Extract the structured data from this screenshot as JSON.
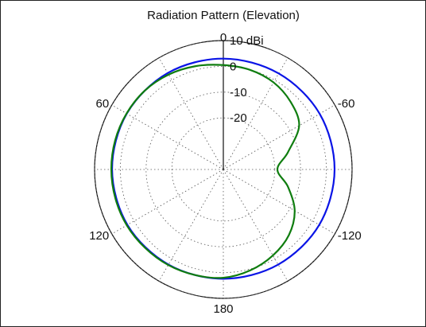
{
  "chart_data": {
    "type": "line",
    "subtype": "polar",
    "title": "Radiation Pattern (Elevation)",
    "radial_unit": "dBi",
    "radial_range": [
      -40,
      10
    ],
    "radial_ticks": [
      {
        "value": 10,
        "label": "10 dBi"
      },
      {
        "value": 0,
        "label": "0"
      },
      {
        "value": -10,
        "label": "-10"
      },
      {
        "value": -20,
        "label": "-20"
      }
    ],
    "angle_labels": [
      {
        "angle": 0,
        "label": "0"
      },
      {
        "angle": 60,
        "label": "60"
      },
      {
        "angle": -60,
        "label": "-60"
      },
      {
        "angle": 120,
        "label": "120"
      },
      {
        "angle": -120,
        "label": "-120"
      },
      {
        "angle": 180,
        "label": "180"
      }
    ],
    "grid": true,
    "spokes_deg": [
      0,
      30,
      60,
      90,
      120,
      150,
      180,
      210,
      240,
      270,
      300,
      330
    ],
    "angle_direction": "0 at top; positive angles to the left",
    "series": [
      {
        "color": "#0a14e6",
        "angles": [
          0,
          30,
          60,
          90,
          120,
          150,
          180,
          210,
          240,
          270,
          300,
          330
        ],
        "values": [
          3.0,
          3.2,
          3.3,
          3.2,
          3.0,
          2.6,
          2.4,
          2.6,
          3.0,
          3.2,
          3.2,
          3.0
        ]
      },
      {
        "color": "#0f7d0f",
        "angles": [
          0,
          15,
          30,
          45,
          60,
          75,
          90,
          105,
          120,
          135,
          150,
          165,
          180,
          195,
          210,
          225,
          240,
          255,
          270,
          285,
          300,
          315,
          330,
          345
        ],
        "values": [
          0.5,
          1.5,
          2.5,
          3.2,
          3.4,
          3.5,
          3.5,
          3.4,
          3.3,
          3.0,
          2.8,
          2.4,
          2.0,
          0.5,
          -1.5,
          -4.0,
          -8.0,
          -14.0,
          -19.0,
          -14.0,
          -6.0,
          -3.0,
          -1.0,
          0.0
        ]
      }
    ]
  }
}
